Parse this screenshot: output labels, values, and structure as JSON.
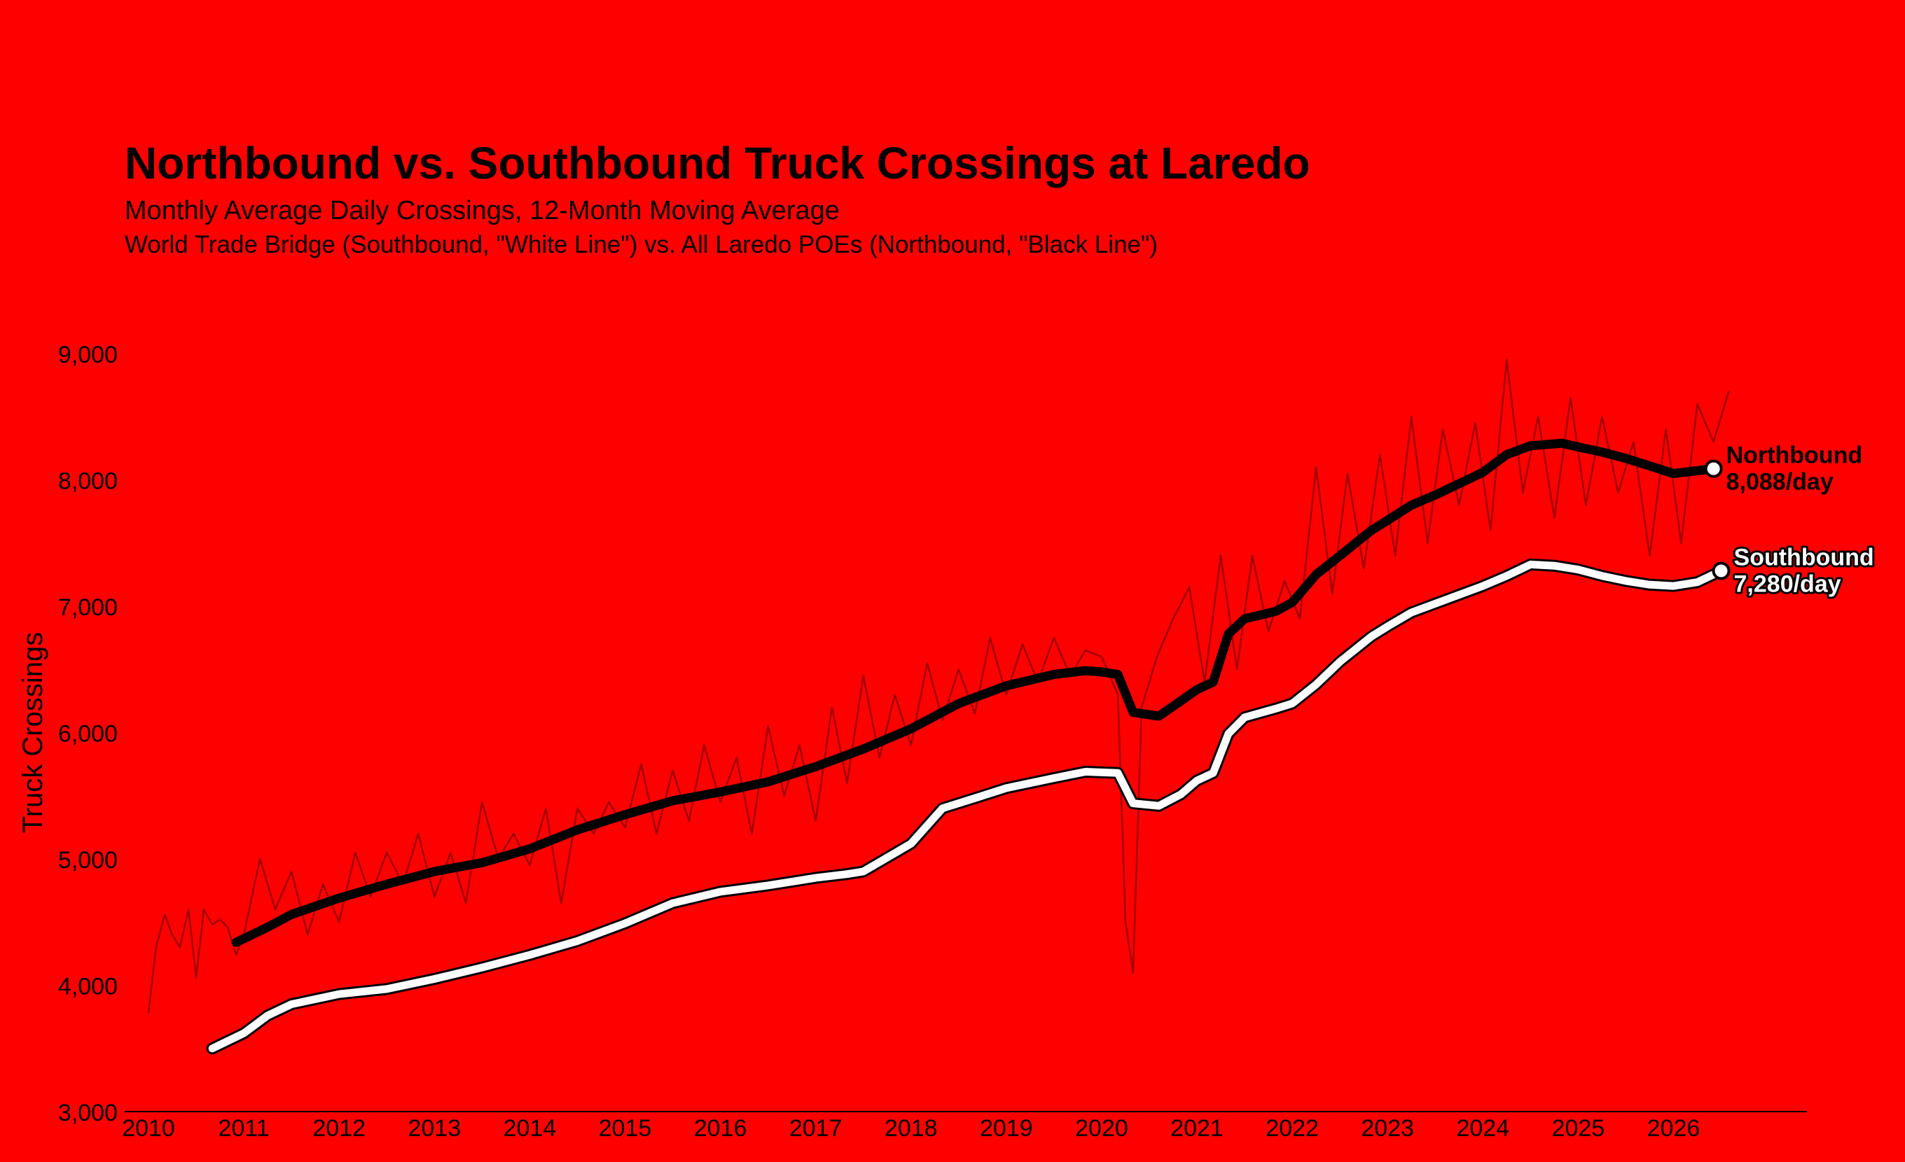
{
  "chart_data": {
    "type": "line",
    "title": "Northbound vs. Southbound Truck Crossings at Laredo",
    "subtitle": "Monthly Average Daily Crossings, 12-Month Moving Average",
    "subtitle2": "World Trade Bridge (Southbound, \"White Line\") vs. All Laredo POEs (Northbound, \"Black Line\")",
    "ylabel": "Truck Crossings",
    "xlabel": "",
    "xlim": [
      2009.75,
      2027.4
    ],
    "ylim": [
      3000,
      9000
    ],
    "yticks": [
      3000,
      4000,
      5000,
      6000,
      7000,
      8000,
      9000
    ],
    "ytick_labels": [
      "3,000",
      "4,000",
      "5,000",
      "6,000",
      "7,000",
      "8,000",
      "9,000"
    ],
    "xticks": [
      2010,
      2011,
      2012,
      2013,
      2014,
      2015,
      2016,
      2017,
      2018,
      2019,
      2020,
      2021,
      2022,
      2023,
      2024,
      2025,
      2026
    ],
    "xtick_labels": [
      "2010",
      "2011",
      "2012",
      "2013",
      "2014",
      "2015",
      "2016",
      "2017",
      "2018",
      "2019",
      "2020",
      "2021",
      "2022",
      "2023",
      "2024",
      "2025",
      "2026"
    ],
    "grid": false,
    "legend": "direct-labels-right",
    "series": [
      {
        "name": "Northbound",
        "role": "moving-average",
        "color": "#000000",
        "end_label": "Northbound",
        "end_value_label": "8,088/day",
        "end_value": 8088,
        "points": [
          [
            2010.92,
            4340
          ],
          [
            2011.25,
            4460
          ],
          [
            2011.5,
            4560
          ],
          [
            2012.0,
            4690
          ],
          [
            2012.5,
            4800
          ],
          [
            2013.0,
            4900
          ],
          [
            2013.5,
            4970
          ],
          [
            2014.0,
            5080
          ],
          [
            2014.5,
            5230
          ],
          [
            2015.0,
            5350
          ],
          [
            2015.5,
            5460
          ],
          [
            2016.0,
            5530
          ],
          [
            2016.5,
            5610
          ],
          [
            2017.0,
            5730
          ],
          [
            2017.5,
            5870
          ],
          [
            2018.0,
            6030
          ],
          [
            2018.5,
            6230
          ],
          [
            2019.0,
            6370
          ],
          [
            2019.5,
            6460
          ],
          [
            2019.83,
            6490
          ],
          [
            2020.0,
            6480
          ],
          [
            2020.17,
            6460
          ],
          [
            2020.33,
            6160
          ],
          [
            2020.6,
            6130
          ],
          [
            2020.83,
            6250
          ],
          [
            2021.0,
            6340
          ],
          [
            2021.17,
            6400
          ],
          [
            2021.33,
            6780
          ],
          [
            2021.5,
            6900
          ],
          [
            2021.83,
            6960
          ],
          [
            2022.0,
            7030
          ],
          [
            2022.25,
            7250
          ],
          [
            2022.5,
            7400
          ],
          [
            2022.83,
            7600
          ],
          [
            2023.0,
            7680
          ],
          [
            2023.25,
            7800
          ],
          [
            2023.5,
            7880
          ],
          [
            2024.0,
            8060
          ],
          [
            2024.25,
            8200
          ],
          [
            2024.5,
            8270
          ],
          [
            2024.83,
            8290
          ],
          [
            2025.0,
            8260
          ],
          [
            2025.25,
            8220
          ],
          [
            2025.5,
            8170
          ],
          [
            2025.75,
            8110
          ],
          [
            2026.0,
            8050
          ],
          [
            2026.42,
            8088
          ]
        ]
      },
      {
        "name": "Southbound",
        "role": "moving-average",
        "color": "#ffffff",
        "end_label": "Southbound",
        "end_value_label": "7,280/day",
        "end_value": 7280,
        "points": [
          [
            2010.67,
            3500
          ],
          [
            2011.0,
            3620
          ],
          [
            2011.25,
            3760
          ],
          [
            2011.5,
            3850
          ],
          [
            2012.0,
            3930
          ],
          [
            2012.5,
            3970
          ],
          [
            2013.0,
            4050
          ],
          [
            2013.5,
            4140
          ],
          [
            2014.0,
            4240
          ],
          [
            2014.5,
            4350
          ],
          [
            2015.0,
            4490
          ],
          [
            2015.5,
            4650
          ],
          [
            2016.0,
            4740
          ],
          [
            2016.5,
            4790
          ],
          [
            2017.0,
            4850
          ],
          [
            2017.33,
            4880
          ],
          [
            2017.5,
            4900
          ],
          [
            2018.0,
            5120
          ],
          [
            2018.33,
            5400
          ],
          [
            2018.75,
            5500
          ],
          [
            2019.0,
            5560
          ],
          [
            2019.5,
            5640
          ],
          [
            2019.83,
            5690
          ],
          [
            2020.17,
            5680
          ],
          [
            2020.33,
            5440
          ],
          [
            2020.6,
            5420
          ],
          [
            2020.83,
            5510
          ],
          [
            2021.0,
            5620
          ],
          [
            2021.17,
            5680
          ],
          [
            2021.33,
            5990
          ],
          [
            2021.5,
            6120
          ],
          [
            2021.83,
            6190
          ],
          [
            2022.0,
            6230
          ],
          [
            2022.25,
            6380
          ],
          [
            2022.5,
            6560
          ],
          [
            2022.83,
            6760
          ],
          [
            2023.0,
            6840
          ],
          [
            2023.25,
            6950
          ],
          [
            2023.5,
            7020
          ],
          [
            2024.0,
            7160
          ],
          [
            2024.25,
            7240
          ],
          [
            2024.5,
            7330
          ],
          [
            2024.75,
            7320
          ],
          [
            2025.0,
            7290
          ],
          [
            2025.25,
            7240
          ],
          [
            2025.5,
            7200
          ],
          [
            2025.75,
            7170
          ],
          [
            2026.0,
            7160
          ],
          [
            2026.25,
            7190
          ],
          [
            2026.5,
            7280
          ]
        ]
      },
      {
        "name": "",
        "role": "monthly-raw",
        "color": "#7a0000",
        "points": [
          [
            2010.0,
            3780
          ],
          [
            2010.08,
            4300
          ],
          [
            2010.17,
            4560
          ],
          [
            2010.25,
            4400
          ],
          [
            2010.33,
            4300
          ],
          [
            2010.42,
            4600
          ],
          [
            2010.5,
            4060
          ],
          [
            2010.58,
            4600
          ],
          [
            2010.67,
            4480
          ],
          [
            2010.75,
            4520
          ],
          [
            2010.83,
            4460
          ],
          [
            2010.92,
            4240
          ],
          [
            2011.0,
            4400
          ],
          [
            2011.17,
            5000
          ],
          [
            2011.33,
            4600
          ],
          [
            2011.5,
            4900
          ],
          [
            2011.67,
            4400
          ],
          [
            2011.83,
            4800
          ],
          [
            2012.0,
            4500
          ],
          [
            2012.17,
            5050
          ],
          [
            2012.33,
            4700
          ],
          [
            2012.5,
            5050
          ],
          [
            2012.67,
            4800
          ],
          [
            2012.83,
            5200
          ],
          [
            2013.0,
            4700
          ],
          [
            2013.17,
            5050
          ],
          [
            2013.33,
            4650
          ],
          [
            2013.5,
            5450
          ],
          [
            2013.67,
            5000
          ],
          [
            2013.83,
            5200
          ],
          [
            2014.0,
            4950
          ],
          [
            2014.17,
            5400
          ],
          [
            2014.33,
            4650
          ],
          [
            2014.5,
            5400
          ],
          [
            2014.67,
            5200
          ],
          [
            2014.83,
            5450
          ],
          [
            2015.0,
            5250
          ],
          [
            2015.17,
            5750
          ],
          [
            2015.33,
            5200
          ],
          [
            2015.5,
            5700
          ],
          [
            2015.67,
            5300
          ],
          [
            2015.83,
            5900
          ],
          [
            2016.0,
            5450
          ],
          [
            2016.17,
            5800
          ],
          [
            2016.33,
            5200
          ],
          [
            2016.5,
            6050
          ],
          [
            2016.67,
            5500
          ],
          [
            2016.83,
            5900
          ],
          [
            2017.0,
            5300
          ],
          [
            2017.17,
            6200
          ],
          [
            2017.33,
            5600
          ],
          [
            2017.5,
            6450
          ],
          [
            2017.67,
            5800
          ],
          [
            2017.83,
            6300
          ],
          [
            2018.0,
            5900
          ],
          [
            2018.17,
            6550
          ],
          [
            2018.33,
            6100
          ],
          [
            2018.5,
            6500
          ],
          [
            2018.67,
            6150
          ],
          [
            2018.83,
            6750
          ],
          [
            2019.0,
            6300
          ],
          [
            2019.17,
            6700
          ],
          [
            2019.33,
            6400
          ],
          [
            2019.5,
            6750
          ],
          [
            2019.67,
            6450
          ],
          [
            2019.83,
            6650
          ],
          [
            2020.0,
            6600
          ],
          [
            2020.17,
            6300
          ],
          [
            2020.25,
            4500
          ],
          [
            2020.33,
            4100
          ],
          [
            2020.42,
            6200
          ],
          [
            2020.58,
            6600
          ],
          [
            2020.75,
            6900
          ],
          [
            2020.92,
            7150
          ],
          [
            2021.08,
            6400
          ],
          [
            2021.25,
            7400
          ],
          [
            2021.42,
            6500
          ],
          [
            2021.58,
            7400
          ],
          [
            2021.75,
            6800
          ],
          [
            2021.92,
            7200
          ],
          [
            2022.08,
            6900
          ],
          [
            2022.25,
            8100
          ],
          [
            2022.42,
            7100
          ],
          [
            2022.58,
            8050
          ],
          [
            2022.75,
            7300
          ],
          [
            2022.92,
            8200
          ],
          [
            2023.08,
            7400
          ],
          [
            2023.25,
            8500
          ],
          [
            2023.42,
            7500
          ],
          [
            2023.58,
            8400
          ],
          [
            2023.75,
            7800
          ],
          [
            2023.92,
            8450
          ],
          [
            2024.08,
            7600
          ],
          [
            2024.25,
            8950
          ],
          [
            2024.42,
            7900
          ],
          [
            2024.58,
            8500
          ],
          [
            2024.75,
            7700
          ],
          [
            2024.92,
            8650
          ],
          [
            2025.08,
            7800
          ],
          [
            2025.25,
            8500
          ],
          [
            2025.42,
            7900
          ],
          [
            2025.58,
            8300
          ],
          [
            2025.75,
            7400
          ],
          [
            2025.92,
            8400
          ],
          [
            2026.08,
            7500
          ],
          [
            2026.25,
            8600
          ],
          [
            2026.42,
            8300
          ],
          [
            2026.58,
            8700
          ]
        ]
      }
    ]
  }
}
